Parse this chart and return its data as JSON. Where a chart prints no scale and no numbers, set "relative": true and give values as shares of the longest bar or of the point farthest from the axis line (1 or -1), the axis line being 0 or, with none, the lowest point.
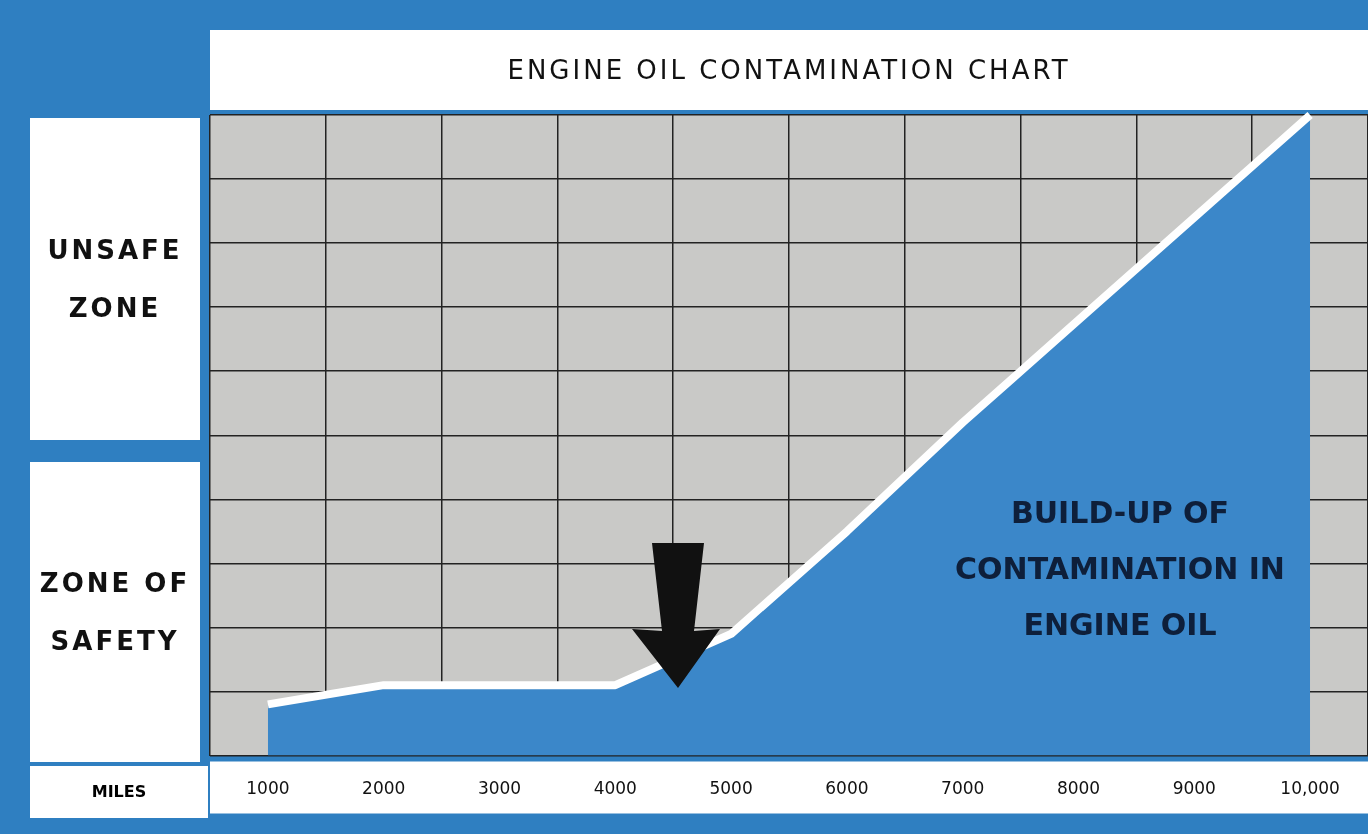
{
  "chart_data": {
    "type": "area",
    "title": "ENGINE OIL CONTAMINATION CHART",
    "xlabel": "MILES",
    "relative": true,
    "categories": [
      "1000",
      "2000",
      "3000",
      "4000",
      "5000",
      "6000",
      "7000",
      "8000",
      "9000",
      "10,000"
    ],
    "series": [
      {
        "color": "#3b87c9",
        "values": [
          0.08,
          0.11,
          0.11,
          0.11,
          0.19,
          0.35,
          0.52,
          0.68,
          0.84,
          1
        ]
      }
    ],
    "annotations": [
      "UNSAFE ZONE",
      "ZONE OF SAFETY",
      "BUILD-UP OF CONTAMINATION IN ENGINE OIL"
    ],
    "grid": true,
    "legend": false
  }
}
